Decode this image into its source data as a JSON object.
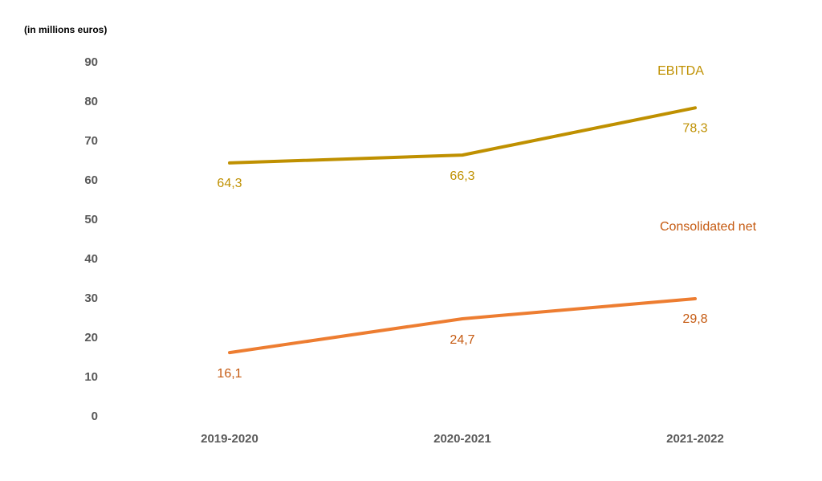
{
  "chart_data": {
    "type": "line",
    "unit_label": "(in millions euros)",
    "categories": [
      "2019-2020",
      "2020-2021",
      "2021-2022"
    ],
    "ylim": [
      0,
      90
    ],
    "yticks": [
      0,
      10,
      20,
      30,
      40,
      50,
      60,
      70,
      80,
      90
    ],
    "grid": false,
    "series": [
      {
        "name": "EBITDA",
        "values": [
          64.3,
          66.3,
          78.3
        ],
        "labels": [
          "64,3",
          "66,3",
          "78,3"
        ],
        "color": "#BF9000"
      },
      {
        "name": "Consolidated net",
        "values": [
          16.1,
          24.7,
          29.8
        ],
        "labels": [
          "16,1",
          "24,7",
          "29,8"
        ],
        "color": "#ED7D31",
        "label_color": "#C55A11"
      }
    ]
  }
}
